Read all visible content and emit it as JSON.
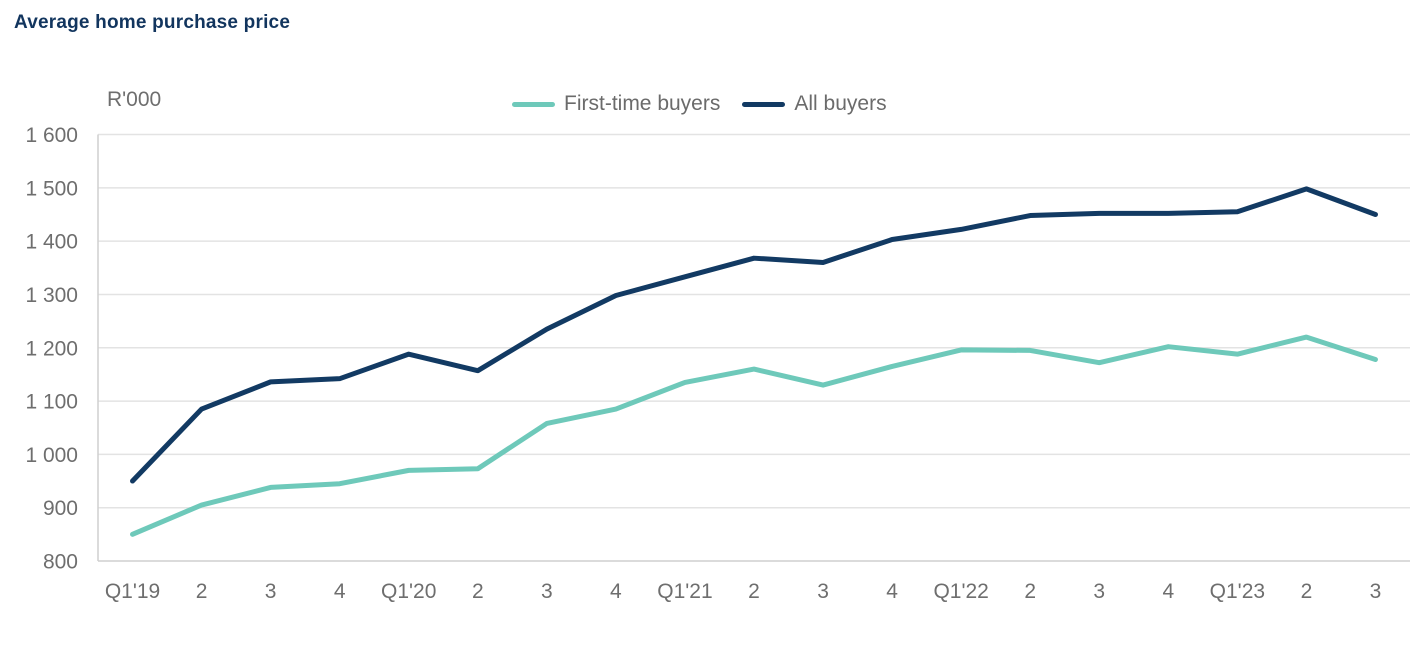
{
  "title": "Average home purchase price",
  "chart_data": {
    "type": "line",
    "unit_label": "R'000",
    "categories": [
      "Q1'19",
      "2",
      "3",
      "4",
      "Q1'20",
      "2",
      "3",
      "4",
      "Q1'21",
      "2",
      "3",
      "4",
      "Q1'22",
      "2",
      "3",
      "4",
      "Q1'23",
      "2",
      "3"
    ],
    "series": [
      {
        "name": "First-time buyers",
        "color": "#6ec9ba",
        "values": [
          850,
          905,
          938,
          945,
          970,
          973,
          1058,
          1085,
          1135,
          1160,
          1130,
          1165,
          1196,
          1195,
          1172,
          1202,
          1188,
          1220,
          1178
        ]
      },
      {
        "name": "All buyers",
        "color": "#123a63",
        "values": [
          950,
          1085,
          1136,
          1142,
          1188,
          1157,
          1235,
          1298,
          1333,
          1368,
          1360,
          1403,
          1422,
          1448,
          1452,
          1452,
          1455,
          1498,
          1450
        ]
      }
    ],
    "ylim": [
      800,
      1600
    ],
    "ytick_step": 100,
    "ytick_labels": [
      "800",
      "900",
      "1 000",
      "1 100",
      "1 200",
      "1 300",
      "1 400",
      "1 500",
      "1 600"
    ],
    "grid": "horizontal",
    "legend_position": "top-center",
    "xlabel": "",
    "ylabel": "R'000",
    "colors": {
      "title_text": "#12355e",
      "axis_text": "#6e6e6e",
      "legend_text": "#6b6b6b",
      "gridline": "#e3e3e3",
      "axis_line": "#cfcfcf"
    }
  }
}
